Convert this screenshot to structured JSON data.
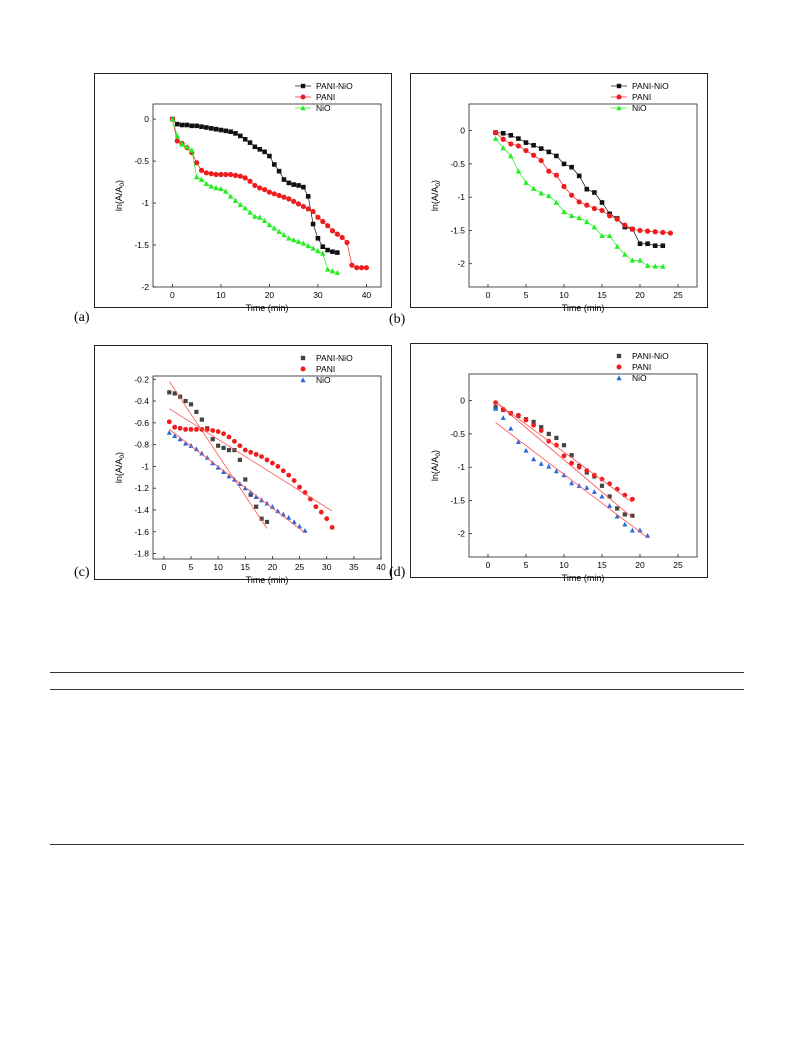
{
  "colors": {
    "black": "#111111",
    "red": "#ee1c1c",
    "green": "#22ee22",
    "grey": "#444444",
    "blue": "#2a6ad8",
    "fit": "#ff5050"
  },
  "chart_data": [
    {
      "panel_label": "(a)",
      "type": "line",
      "xlabel": "Time (min)",
      "ylabel": "ln(A/A",
      "ylabel_sub": "0",
      "xlim": [
        -4,
        43
      ],
      "ylim": [
        -2.0,
        0.18
      ],
      "xticks": [
        0,
        10,
        20,
        30,
        40
      ],
      "yticks": [
        0,
        -0.5,
        -1,
        -1.5,
        -2
      ],
      "ytick_labels": [
        "0",
        "-0.5",
        "-1",
        "-1.5",
        "-2"
      ],
      "legend_position": "top-right",
      "series": [
        {
          "name": "PANI-NiO",
          "marker": "square",
          "color": "#111111",
          "x": [
            0,
            1,
            2,
            3,
            4,
            5,
            6,
            7,
            8,
            9,
            10,
            11,
            12,
            13,
            14,
            15,
            16,
            17,
            18,
            19,
            20,
            21,
            22,
            23,
            24,
            25,
            26,
            27,
            28,
            29,
            30,
            31,
            32,
            33,
            34
          ],
          "y": [
            0,
            -0.06,
            -0.07,
            -0.07,
            -0.08,
            -0.08,
            -0.09,
            -0.1,
            -0.11,
            -0.12,
            -0.13,
            -0.14,
            -0.15,
            -0.17,
            -0.2,
            -0.24,
            -0.28,
            -0.33,
            -0.36,
            -0.39,
            -0.44,
            -0.54,
            -0.62,
            -0.72,
            -0.76,
            -0.78,
            -0.79,
            -0.81,
            -0.92,
            -1.25,
            -1.42,
            -1.52,
            -1.56,
            -1.58,
            -1.59
          ]
        },
        {
          "name": "PANI",
          "marker": "circle",
          "color": "#ee1c1c",
          "x": [
            0,
            1,
            2,
            3,
            4,
            5,
            6,
            7,
            8,
            9,
            10,
            11,
            12,
            13,
            14,
            15,
            16,
            17,
            18,
            19,
            20,
            21,
            22,
            23,
            24,
            25,
            26,
            27,
            28,
            29,
            30,
            31,
            32,
            33,
            34,
            35,
            36,
            37,
            38,
            39,
            40
          ],
          "y": [
            0,
            -0.26,
            -0.29,
            -0.34,
            -0.4,
            -0.52,
            -0.61,
            -0.64,
            -0.65,
            -0.66,
            -0.66,
            -0.66,
            -0.66,
            -0.67,
            -0.68,
            -0.7,
            -0.74,
            -0.79,
            -0.82,
            -0.84,
            -0.87,
            -0.89,
            -0.91,
            -0.93,
            -0.95,
            -0.98,
            -1.01,
            -1.04,
            -1.07,
            -1.1,
            -1.17,
            -1.22,
            -1.27,
            -1.33,
            -1.37,
            -1.41,
            -1.47,
            -1.74,
            -1.77,
            -1.77,
            -1.77
          ]
        },
        {
          "name": "NiO",
          "marker": "triangle",
          "color": "#22ee22",
          "x": [
            0,
            1,
            2,
            3,
            4,
            5,
            6,
            7,
            8,
            9,
            10,
            11,
            12,
            13,
            14,
            15,
            16,
            17,
            18,
            19,
            20,
            21,
            22,
            23,
            24,
            25,
            26,
            27,
            28,
            29,
            30,
            31,
            32,
            33,
            34
          ],
          "y": [
            0,
            -0.2,
            -0.3,
            -0.33,
            -0.37,
            -0.69,
            -0.72,
            -0.77,
            -0.8,
            -0.82,
            -0.83,
            -0.86,
            -0.92,
            -0.97,
            -1.02,
            -1.06,
            -1.11,
            -1.16,
            -1.17,
            -1.21,
            -1.26,
            -1.3,
            -1.34,
            -1.38,
            -1.42,
            -1.44,
            -1.46,
            -1.48,
            -1.51,
            -1.54,
            -1.57,
            -1.6,
            -1.79,
            -1.81,
            -1.83
          ]
        }
      ]
    },
    {
      "panel_label": "(b)",
      "type": "line",
      "xlabel": "Time (min)",
      "ylabel": "ln(A/A",
      "ylabel_sub": "0",
      "xlim": [
        -2.5,
        27.5
      ],
      "ylim": [
        -2.35,
        0.4
      ],
      "xticks": [
        0,
        5,
        10,
        15,
        20,
        25
      ],
      "yticks": [
        0,
        -0.5,
        -1,
        -1.5,
        -2
      ],
      "ytick_labels": [
        "0",
        "-0.5",
        "-1",
        "-1.5",
        "-2"
      ],
      "legend_position": "top-right",
      "series": [
        {
          "name": "PANI-NiO",
          "marker": "square",
          "color": "#111111",
          "x": [
            1,
            2,
            3,
            4,
            5,
            6,
            7,
            8,
            9,
            10,
            11,
            12,
            13,
            14,
            15,
            16,
            17,
            18,
            19,
            20,
            21,
            22,
            23
          ],
          "y": [
            -0.03,
            -0.04,
            -0.07,
            -0.12,
            -0.18,
            -0.22,
            -0.27,
            -0.32,
            -0.38,
            -0.5,
            -0.55,
            -0.68,
            -0.88,
            -0.93,
            -1.08,
            -1.25,
            -1.32,
            -1.45,
            -1.48,
            -1.7,
            -1.7,
            -1.73,
            -1.73
          ]
        },
        {
          "name": "PANI",
          "marker": "circle",
          "color": "#ee1c1c",
          "x": [
            1,
            2,
            3,
            4,
            5,
            6,
            7,
            8,
            9,
            10,
            11,
            12,
            13,
            14,
            15,
            16,
            17,
            18,
            19,
            20,
            21,
            22,
            23,
            24
          ],
          "y": [
            -0.03,
            -0.13,
            -0.2,
            -0.23,
            -0.3,
            -0.37,
            -0.45,
            -0.61,
            -0.67,
            -0.84,
            -0.97,
            -1.07,
            -1.12,
            -1.17,
            -1.2,
            -1.28,
            -1.33,
            -1.42,
            -1.48,
            -1.5,
            -1.51,
            -1.52,
            -1.53,
            -1.54
          ]
        },
        {
          "name": "NiO",
          "marker": "triangle",
          "color": "#22ee22",
          "x": [
            1,
            2,
            3,
            4,
            5,
            6,
            7,
            8,
            9,
            10,
            11,
            12,
            13,
            14,
            15,
            16,
            17,
            18,
            19,
            20,
            21,
            22,
            23
          ],
          "y": [
            -0.12,
            -0.26,
            -0.38,
            -0.61,
            -0.78,
            -0.87,
            -0.94,
            -0.98,
            -1.08,
            -1.22,
            -1.28,
            -1.31,
            -1.37,
            -1.45,
            -1.58,
            -1.58,
            -1.74,
            -1.86,
            -1.95,
            -1.95,
            -2.03,
            -2.04,
            -2.04
          ]
        }
      ]
    },
    {
      "panel_label": "(c)",
      "type": "scatter",
      "xlabel": "Time (min)",
      "ylabel": "ln(A/A",
      "ylabel_sub": "0",
      "xlim": [
        -2,
        40
      ],
      "ylim": [
        -1.85,
        -0.17
      ],
      "xticks": [
        0,
        5,
        10,
        15,
        20,
        25,
        30,
        35,
        40
      ],
      "yticks": [
        -0.2,
        -0.4,
        -0.6,
        -0.8,
        -1,
        -1.2,
        -1.4,
        -1.6,
        -1.8
      ],
      "ytick_labels": [
        "-0.2",
        "-0.4",
        "-0.6",
        "-0.8",
        "-1",
        "-1.2",
        "-1.4",
        "-1.6",
        "-1.8"
      ],
      "legend_position": "top-right",
      "series": [
        {
          "name": "PANI-NiO",
          "marker": "square",
          "color": "#444444",
          "x": [
            1,
            2,
            3,
            4,
            5,
            6,
            7,
            8,
            9,
            10,
            11,
            12,
            13,
            14,
            15,
            16,
            17,
            18,
            19
          ],
          "y": [
            -0.32,
            -0.33,
            -0.36,
            -0.4,
            -0.43,
            -0.5,
            -0.57,
            -0.65,
            -0.75,
            -0.81,
            -0.83,
            -0.85,
            -0.85,
            -0.94,
            -1.12,
            -1.26,
            -1.37,
            -1.48,
            -1.51
          ],
          "fit": [
            [
              1,
              -0.22
            ],
            [
              19,
              -1.57
            ]
          ]
        },
        {
          "name": "PANI",
          "marker": "circle",
          "color": "#ee1c1c",
          "x": [
            1,
            2,
            3,
            4,
            5,
            6,
            7,
            8,
            9,
            10,
            11,
            12,
            13,
            14,
            15,
            16,
            17,
            18,
            19,
            20,
            21,
            22,
            23,
            24,
            25,
            26,
            27,
            28,
            29,
            30,
            31
          ],
          "y": [
            -0.59,
            -0.64,
            -0.65,
            -0.66,
            -0.66,
            -0.66,
            -0.66,
            -0.66,
            -0.67,
            -0.68,
            -0.7,
            -0.73,
            -0.77,
            -0.81,
            -0.85,
            -0.87,
            -0.89,
            -0.91,
            -0.94,
            -0.97,
            -1.0,
            -1.04,
            -1.08,
            -1.13,
            -1.19,
            -1.24,
            -1.3,
            -1.37,
            -1.42,
            -1.48,
            -1.56
          ],
          "fit": [
            [
              1,
              -0.47
            ],
            [
              31,
              -1.41
            ]
          ]
        },
        {
          "name": "NiO",
          "marker": "triangle",
          "color": "#2a6ad8",
          "x": [
            1,
            2,
            3,
            4,
            5,
            6,
            7,
            8,
            9,
            10,
            11,
            12,
            13,
            14,
            15,
            16,
            17,
            18,
            19,
            20,
            21,
            22,
            23,
            24,
            25,
            26
          ],
          "y": [
            -0.69,
            -0.72,
            -0.75,
            -0.79,
            -0.81,
            -0.84,
            -0.88,
            -0.92,
            -0.97,
            -1.01,
            -1.05,
            -1.09,
            -1.12,
            -1.16,
            -1.2,
            -1.24,
            -1.28,
            -1.31,
            -1.34,
            -1.37,
            -1.41,
            -1.44,
            -1.47,
            -1.51,
            -1.55,
            -1.59
          ],
          "fit": [
            [
              1,
              -0.66
            ],
            [
              26,
              -1.61
            ]
          ]
        }
      ]
    },
    {
      "panel_label": "(d)",
      "type": "scatter",
      "xlabel": "Time (min)",
      "ylabel": "ln(A/A",
      "ylabel_sub": "0",
      "xlim": [
        -2.5,
        27.5
      ],
      "ylim": [
        -2.35,
        0.4
      ],
      "xticks": [
        0,
        5,
        10,
        15,
        20,
        25
      ],
      "yticks": [
        0,
        -0.5,
        -1,
        -1.5,
        -2
      ],
      "ytick_labels": [
        "0",
        "-0.5",
        "-1",
        "-1.5",
        "-2"
      ],
      "legend_position": "top-right",
      "series": [
        {
          "name": "PANI-NiO",
          "marker": "square",
          "color": "#444444",
          "x": [
            1,
            2,
            3,
            4,
            5,
            6,
            7,
            8,
            9,
            10,
            11,
            12,
            13,
            14,
            15,
            16,
            17,
            18,
            19
          ],
          "y": [
            -0.1,
            -0.14,
            -0.19,
            -0.23,
            -0.28,
            -0.32,
            -0.4,
            -0.5,
            -0.56,
            -0.67,
            -0.82,
            -0.98,
            -1.08,
            -1.14,
            -1.28,
            -1.44,
            -1.62,
            -1.71,
            -1.73
          ],
          "fit": [
            [
              1,
              -0.02
            ],
            [
              19,
              -1.76
            ]
          ]
        },
        {
          "name": "PANI",
          "marker": "circle",
          "color": "#ee1c1c",
          "x": [
            1,
            2,
            3,
            4,
            5,
            6,
            7,
            8,
            9,
            10,
            11,
            12,
            13,
            14,
            15,
            16,
            17,
            18,
            19
          ],
          "y": [
            -0.03,
            -0.13,
            -0.19,
            -0.22,
            -0.29,
            -0.37,
            -0.45,
            -0.61,
            -0.67,
            -0.83,
            -0.94,
            -1.0,
            -1.05,
            -1.12,
            -1.18,
            -1.25,
            -1.33,
            -1.42,
            -1.48
          ],
          "fit": [
            [
              1,
              -0.02
            ],
            [
              19,
              -1.53
            ]
          ]
        },
        {
          "name": "NiO",
          "marker": "triangle",
          "color": "#2a6ad8",
          "x": [
            1,
            2,
            3,
            4,
            5,
            6,
            7,
            8,
            9,
            10,
            11,
            12,
            13,
            14,
            15,
            16,
            17,
            18,
            19,
            20,
            21
          ],
          "y": [
            -0.12,
            -0.26,
            -0.42,
            -0.62,
            -0.75,
            -0.88,
            -0.95,
            -0.99,
            -1.06,
            -1.12,
            -1.24,
            -1.28,
            -1.31,
            -1.37,
            -1.44,
            -1.58,
            -1.74,
            -1.86,
            -1.95,
            -1.95,
            -2.03
          ],
          "fit": [
            [
              1,
              -0.33
            ],
            [
              21,
              -2.06
            ]
          ]
        }
      ]
    }
  ]
}
